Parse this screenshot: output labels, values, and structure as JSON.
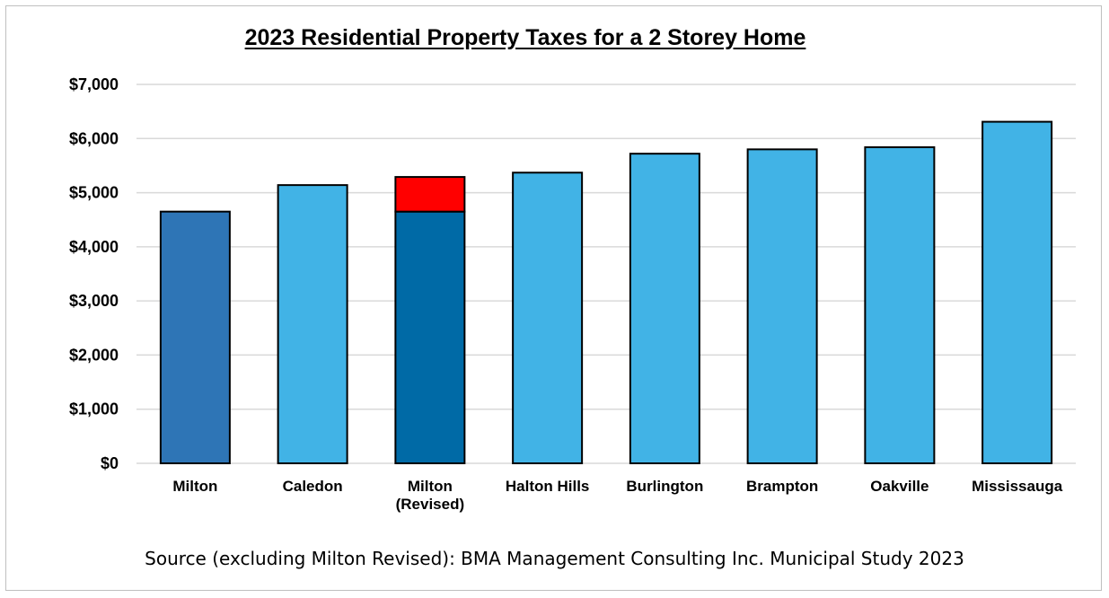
{
  "chart_data": {
    "type": "bar",
    "title": "2023 Residential Property Taxes for a 2 Storey Home",
    "source": "Source (excluding Milton Revised):  BMA Management Consulting Inc. Municipal Study 2023",
    "ylim": [
      0,
      7000
    ],
    "yticks": [
      {
        "value": 0,
        "label": "$0"
      },
      {
        "value": 1000,
        "label": "$1,000"
      },
      {
        "value": 2000,
        "label": "$2,000"
      },
      {
        "value": 3000,
        "label": "$3,000"
      },
      {
        "value": 4000,
        "label": "$4,000"
      },
      {
        "value": 5000,
        "label": "$5,000"
      },
      {
        "value": 6000,
        "label": "$6,000"
      },
      {
        "value": 7000,
        "label": "$7,000"
      }
    ],
    "grid": true,
    "categories": [
      {
        "label": [
          "Milton"
        ],
        "segments": [
          {
            "value": 4650,
            "color": "#2e75b6"
          }
        ]
      },
      {
        "label": [
          "Caledon"
        ],
        "segments": [
          {
            "value": 5140,
            "color": "#41b3e6"
          }
        ]
      },
      {
        "label": [
          "Milton",
          "(Revised)"
        ],
        "segments": [
          {
            "value": 4650,
            "color": "#006aa6"
          },
          {
            "value": 640,
            "color": "#ff0000"
          }
        ]
      },
      {
        "label": [
          "Halton Hills"
        ],
        "segments": [
          {
            "value": 5370,
            "color": "#41b3e6"
          }
        ]
      },
      {
        "label": [
          "Burlington"
        ],
        "segments": [
          {
            "value": 5720,
            "color": "#41b3e6"
          }
        ]
      },
      {
        "label": [
          "Brampton"
        ],
        "segments": [
          {
            "value": 5800,
            "color": "#41b3e6"
          }
        ]
      },
      {
        "label": [
          "Oakville"
        ],
        "segments": [
          {
            "value": 5840,
            "color": "#41b3e6"
          }
        ]
      },
      {
        "label": [
          "Mississauga"
        ],
        "segments": [
          {
            "value": 6310,
            "color": "#41b3e6"
          }
        ]
      }
    ]
  }
}
